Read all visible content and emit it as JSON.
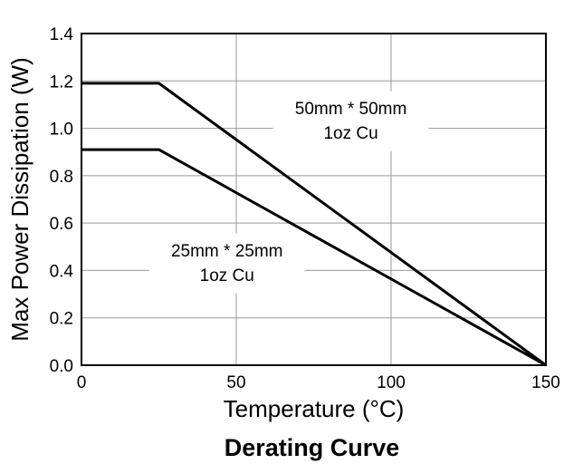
{
  "chart_data": {
    "type": "line",
    "title": "Derating Curve",
    "xlabel": "Temperature (°C)",
    "ylabel": "Max Power Dissipation (W)",
    "xlim": [
      0,
      150
    ],
    "ylim": [
      0.0,
      1.4
    ],
    "xticks": [
      "0",
      "50",
      "100",
      "150"
    ],
    "yticks": [
      "0.0",
      "0.2",
      "0.4",
      "0.6",
      "0.8",
      "1.0",
      "1.2",
      "1.4"
    ],
    "grid": true,
    "series": [
      {
        "x": [
          0,
          25,
          150
        ],
        "y": [
          1.19,
          1.19,
          0.0
        ]
      },
      {
        "x": [
          0,
          25,
          150
        ],
        "y": [
          0.91,
          0.91,
          0.0
        ]
      }
    ],
    "annotations": [
      {
        "lines": [
          "50mm * 50mm",
          "1oz Cu"
        ],
        "x": 87,
        "y": 1.03
      },
      {
        "lines": [
          "25mm * 25mm",
          "1oz Cu"
        ],
        "x": 47,
        "y": 0.43
      }
    ]
  }
}
